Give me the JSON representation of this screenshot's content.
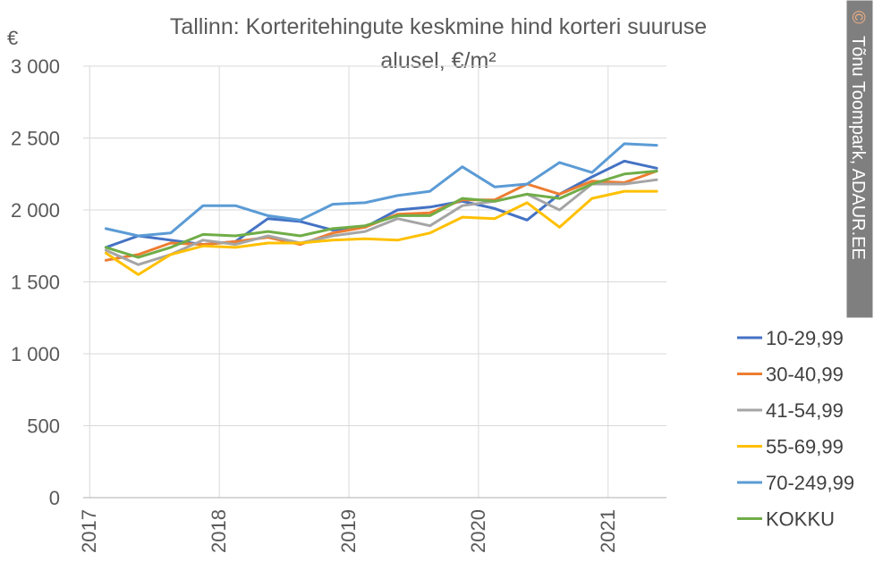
{
  "chart_data": {
    "type": "line",
    "title": "Tallinn: Korteritehingute keskmine hind korteri suuruse alusel, €/m²",
    "title_lines": [
      "Tallinn: Korteritehingute keskmine hind korteri suuruse",
      "alusel, €/m²"
    ],
    "y_unit": "€",
    "ylim": [
      0,
      3000
    ],
    "y_ticks": [
      0,
      500,
      1000,
      1500,
      2000,
      2500,
      3000
    ],
    "y_tick_labels": [
      "0",
      "500",
      "1 000",
      "1 500",
      "2 000",
      "2 500",
      "3 000"
    ],
    "xlim": [
      2016.95,
      2021.45
    ],
    "x_ticks": [
      2017,
      2018,
      2019,
      2020,
      2021
    ],
    "x_tick_labels": [
      "2017",
      "2018",
      "2019",
      "2020",
      "2021"
    ],
    "grid": true,
    "legend_position": "right",
    "x": [
      2017.125,
      2017.375,
      2017.625,
      2017.875,
      2018.125,
      2018.375,
      2018.625,
      2018.875,
      2019.125,
      2019.375,
      2019.625,
      2019.875,
      2020.125,
      2020.375,
      2020.625,
      2020.875,
      2021.125,
      2021.375
    ],
    "series": [
      {
        "name": "10-29,99",
        "color": "#4472C4",
        "values": [
          1740,
          1820,
          1790,
          1760,
          1780,
          1940,
          1920,
          1860,
          1880,
          2000,
          2020,
          2060,
          2010,
          1930,
          2110,
          2230,
          2340,
          2290
        ]
      },
      {
        "name": "30-40,99",
        "color": "#ED7D31",
        "values": [
          1650,
          1690,
          1770,
          1760,
          1780,
          1810,
          1760,
          1840,
          1880,
          1970,
          1980,
          2070,
          2070,
          2180,
          2110,
          2200,
          2190,
          2270
        ]
      },
      {
        "name": "41-54,99",
        "color": "#A5A5A5",
        "values": [
          1720,
          1620,
          1690,
          1790,
          1760,
          1820,
          1770,
          1820,
          1850,
          1940,
          1890,
          2030,
          2060,
          2110,
          2000,
          2180,
          2180,
          2210
        ]
      },
      {
        "name": "55-69,99",
        "color": "#FFC000",
        "values": [
          1700,
          1550,
          1690,
          1750,
          1740,
          1770,
          1770,
          1790,
          1800,
          1790,
          1840,
          1950,
          1940,
          2050,
          1880,
          2080,
          2130,
          2130
        ]
      },
      {
        "name": "70-249,99",
        "color": "#5B9BD5",
        "values": [
          1870,
          1820,
          1840,
          2030,
          2030,
          1960,
          1930,
          2040,
          2050,
          2100,
          2130,
          2300,
          2160,
          2180,
          2330,
          2260,
          2460,
          2450
        ]
      },
      {
        "name": "KOKKU",
        "color": "#70AD47",
        "values": [
          1740,
          1670,
          1740,
          1830,
          1820,
          1850,
          1820,
          1870,
          1890,
          1960,
          1960,
          2080,
          2060,
          2110,
          2080,
          2180,
          2250,
          2270
        ]
      }
    ]
  },
  "credit": {
    "symbol": "©",
    "text": "Tõnu Toompark, ADAUR.EE",
    "bg_color": "#7F7F7F",
    "symbol_color": "#F4B183"
  }
}
